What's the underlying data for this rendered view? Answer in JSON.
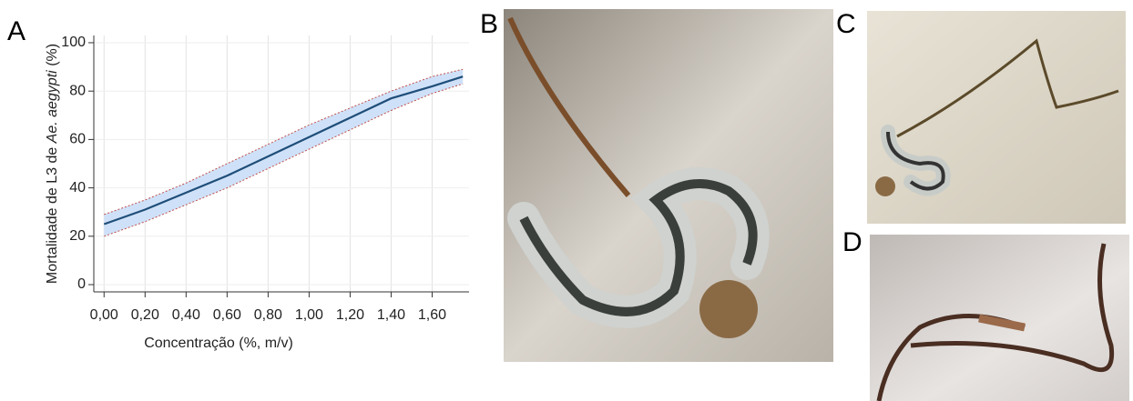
{
  "chart_data": {
    "type": "line",
    "x_label": "Concentração (%, m/v)",
    "y_label": [
      "Mortalidade de L3 de ",
      "Ae. aegypti",
      " (%)"
    ],
    "x": [
      0,
      0.2,
      0.4,
      0.6,
      0.8,
      1.0,
      1.2,
      1.4,
      1.6,
      1.75
    ],
    "series": [
      {
        "color": "#1f4e79",
        "values": [
          25,
          31,
          38,
          45,
          53,
          61,
          69,
          77,
          82,
          86
        ]
      }
    ],
    "band": {
      "color": "#cfe1f8",
      "edge_color": "#c0504d",
      "lower": [
        20,
        26,
        33,
        40,
        48,
        56,
        64,
        72,
        79,
        83
      ],
      "upper": [
        29,
        35,
        42,
        50,
        58,
        66,
        73,
        80,
        86,
        89
      ]
    },
    "xlim": [
      -0.05,
      1.78
    ],
    "ylim": [
      -3,
      103
    ],
    "xticks": [
      {
        "value": 0,
        "label": "0,00"
      },
      {
        "value": 0.2,
        "label": "0,20"
      },
      {
        "value": 0.4,
        "label": "0,40"
      },
      {
        "value": 0.6,
        "label": "0,60"
      },
      {
        "value": 0.8,
        "label": "0,80"
      },
      {
        "value": 1.0,
        "label": "1,00"
      },
      {
        "value": 1.2,
        "label": "1,20"
      },
      {
        "value": 1.4,
        "label": "1,40"
      },
      {
        "value": 1.6,
        "label": "1,60"
      }
    ],
    "yticks": [
      0,
      20,
      40,
      60,
      80,
      100
    ],
    "grid": true
  },
  "panels": [
    "A",
    "B",
    "C",
    "D"
  ]
}
